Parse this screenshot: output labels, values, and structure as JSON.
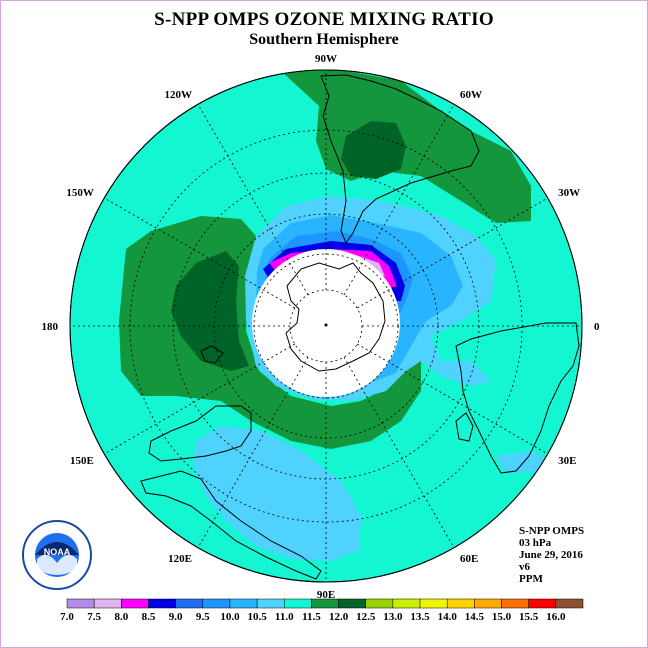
{
  "title": "S-NPP OMPS OZONE MIXING RATIO",
  "subtitle": "Southern Hemisphere",
  "longitude_labels": [
    "90W",
    "60W",
    "30W",
    "0",
    "30E",
    "60E",
    "90E",
    "120E",
    "150E",
    "180",
    "150W",
    "120W"
  ],
  "info": {
    "instrument": "S-NPP OMPS",
    "level": "03 hPa",
    "date": "June 29, 2016",
    "version": "v6",
    "units": "PPM"
  },
  "logo_text": "NOAA",
  "colorbar": {
    "labels": [
      "7.0",
      "7.5",
      "8.0",
      "8.5",
      "9.0",
      "9.5",
      "10.0",
      "10.5",
      "11.0",
      "11.5",
      "12.0",
      "12.5",
      "13.0",
      "13.5",
      "14.0",
      "14.5",
      "15.0",
      "15.5",
      "16.0"
    ],
    "colors": [
      "#b48ce6",
      "#dcb4f0",
      "#ff00ff",
      "#0000e6",
      "#1e6ef0",
      "#1e96ff",
      "#28b4ff",
      "#50d2ff",
      "#14f5d2",
      "#14963c",
      "#006428",
      "#96d200",
      "#c8f000",
      "#f0f500",
      "#ffd200",
      "#ffaa00",
      "#ff6e00",
      "#ff0000",
      "#8c5032"
    ]
  }
}
